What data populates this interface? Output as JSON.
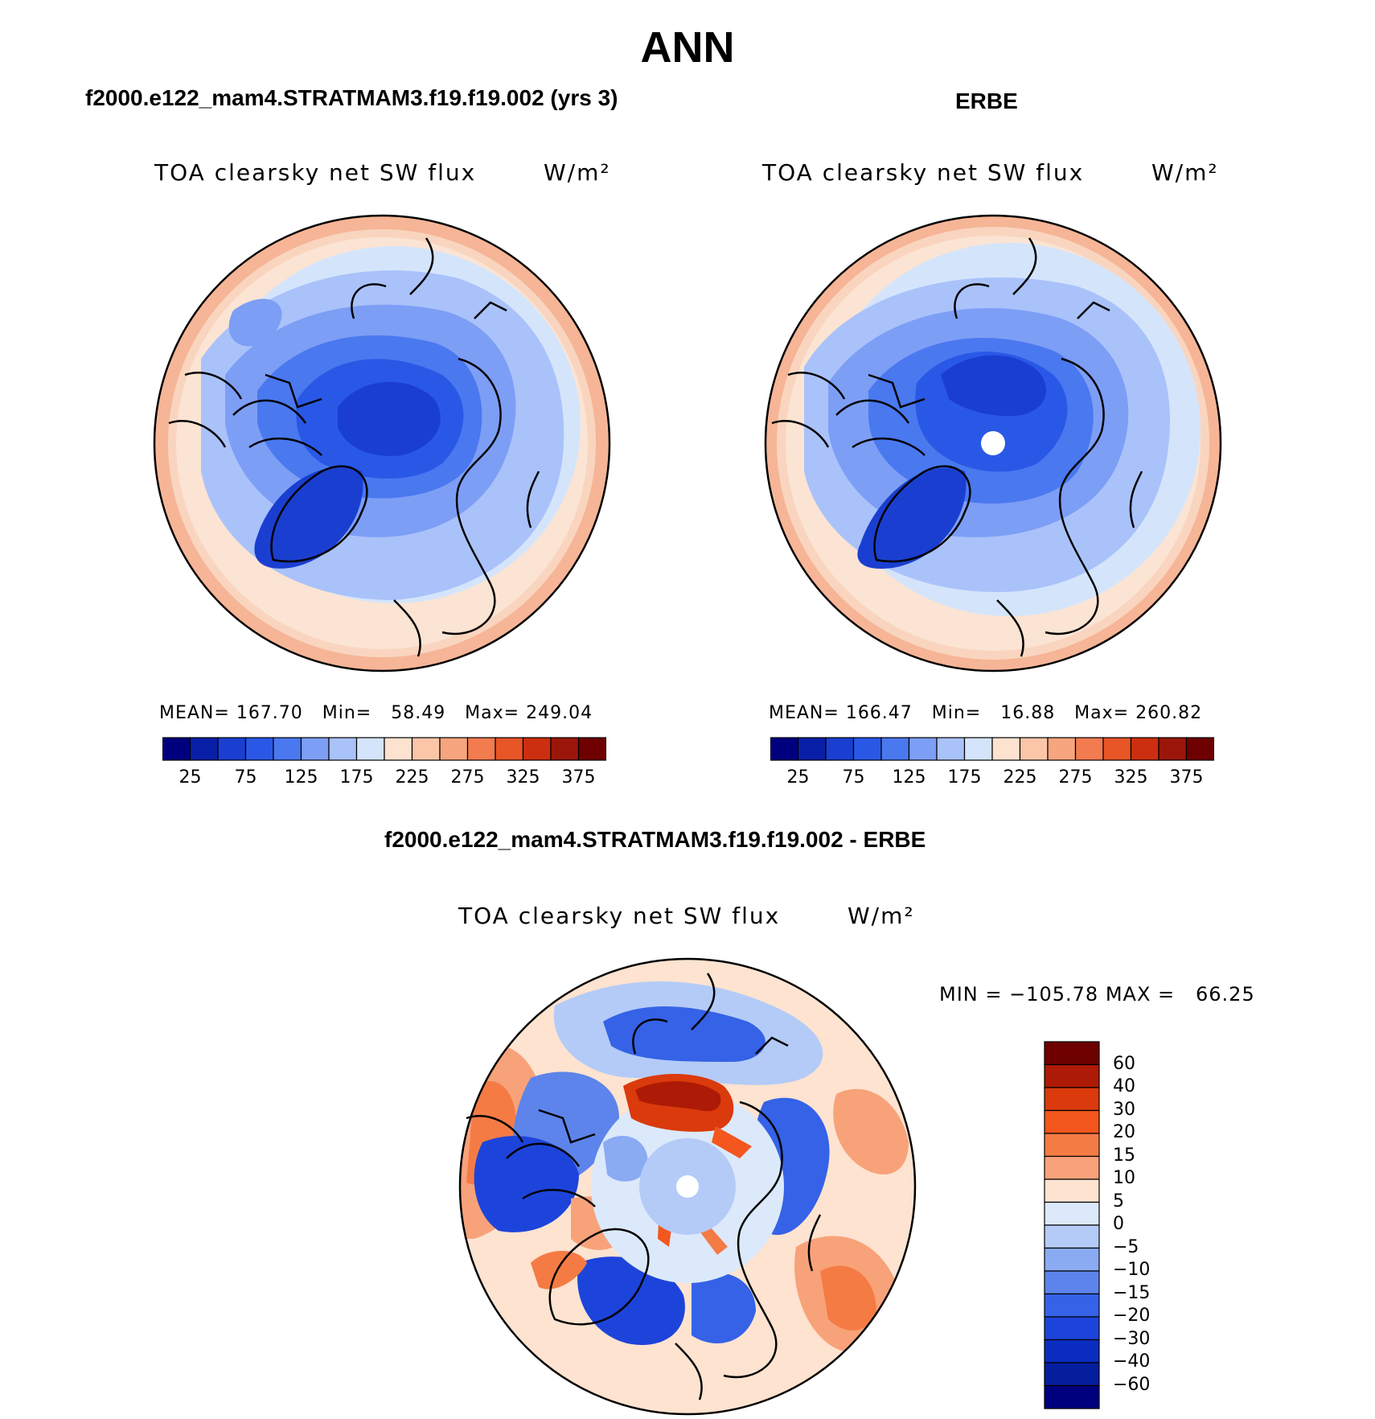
{
  "figure": {
    "season": "ANN"
  },
  "panels": [
    {
      "case": "f2000.e122_mam4.STRATMAM3.f19.f19.002 (yrs 3)",
      "field": "TOA clearsky net SW flux",
      "units": "W/m²",
      "stats": "MEAN= 167.70   Min=   58.49   Max= 249.04"
    },
    {
      "case": "ERBE",
      "field": "TOA clearsky net SW flux",
      "units": "W/m²",
      "stats": "MEAN= 166.47   Min=   16.88   Max= 260.82"
    },
    {
      "case": "f2000.e122_mam4.STRATMAM3.f19.f19.002 - ERBE",
      "field": "TOA clearsky net SW flux",
      "units": "W/m²",
      "stats": "MIN = −105.78 MAX =   66.25"
    }
  ],
  "abs_colorbar": {
    "colors": [
      "#00007e",
      "#0a1fa8",
      "#1a3fd0",
      "#2a58e6",
      "#4a78ef",
      "#7d9ef5",
      "#aac2fa",
      "#d4e5fb",
      "#fde2cf",
      "#fbc6a8",
      "#f7a57e",
      "#f27b4f",
      "#e85526",
      "#cc2f0f",
      "#9b1608",
      "#6e0000"
    ],
    "labels": [
      "25",
      "75",
      "125",
      "175",
      "225",
      "275",
      "325",
      "375"
    ]
  },
  "diff_colorbar": {
    "colors": [
      "#6e0000",
      "#ad1a05",
      "#da3a0c",
      "#f3571e",
      "#f57b45",
      "#f8a27a",
      "#fde3d0",
      "#dbe9fb",
      "#b4cbf8",
      "#8aabf2",
      "#5c84ea",
      "#3562e6",
      "#1d44da",
      "#0a2dc0",
      "#041e9e",
      "#00007e"
    ],
    "labels": [
      "60",
      "40",
      "30",
      "20",
      "15",
      "10",
      "5",
      "0",
      "−5",
      "−10",
      "−15",
      "−20",
      "−30",
      "−40",
      "−60"
    ]
  },
  "map_colors": {
    "ocean_warm": "#f9d5bf",
    "ocean_warm_edge": "#f6b596",
    "diff_neutral": "#fde3d0"
  }
}
